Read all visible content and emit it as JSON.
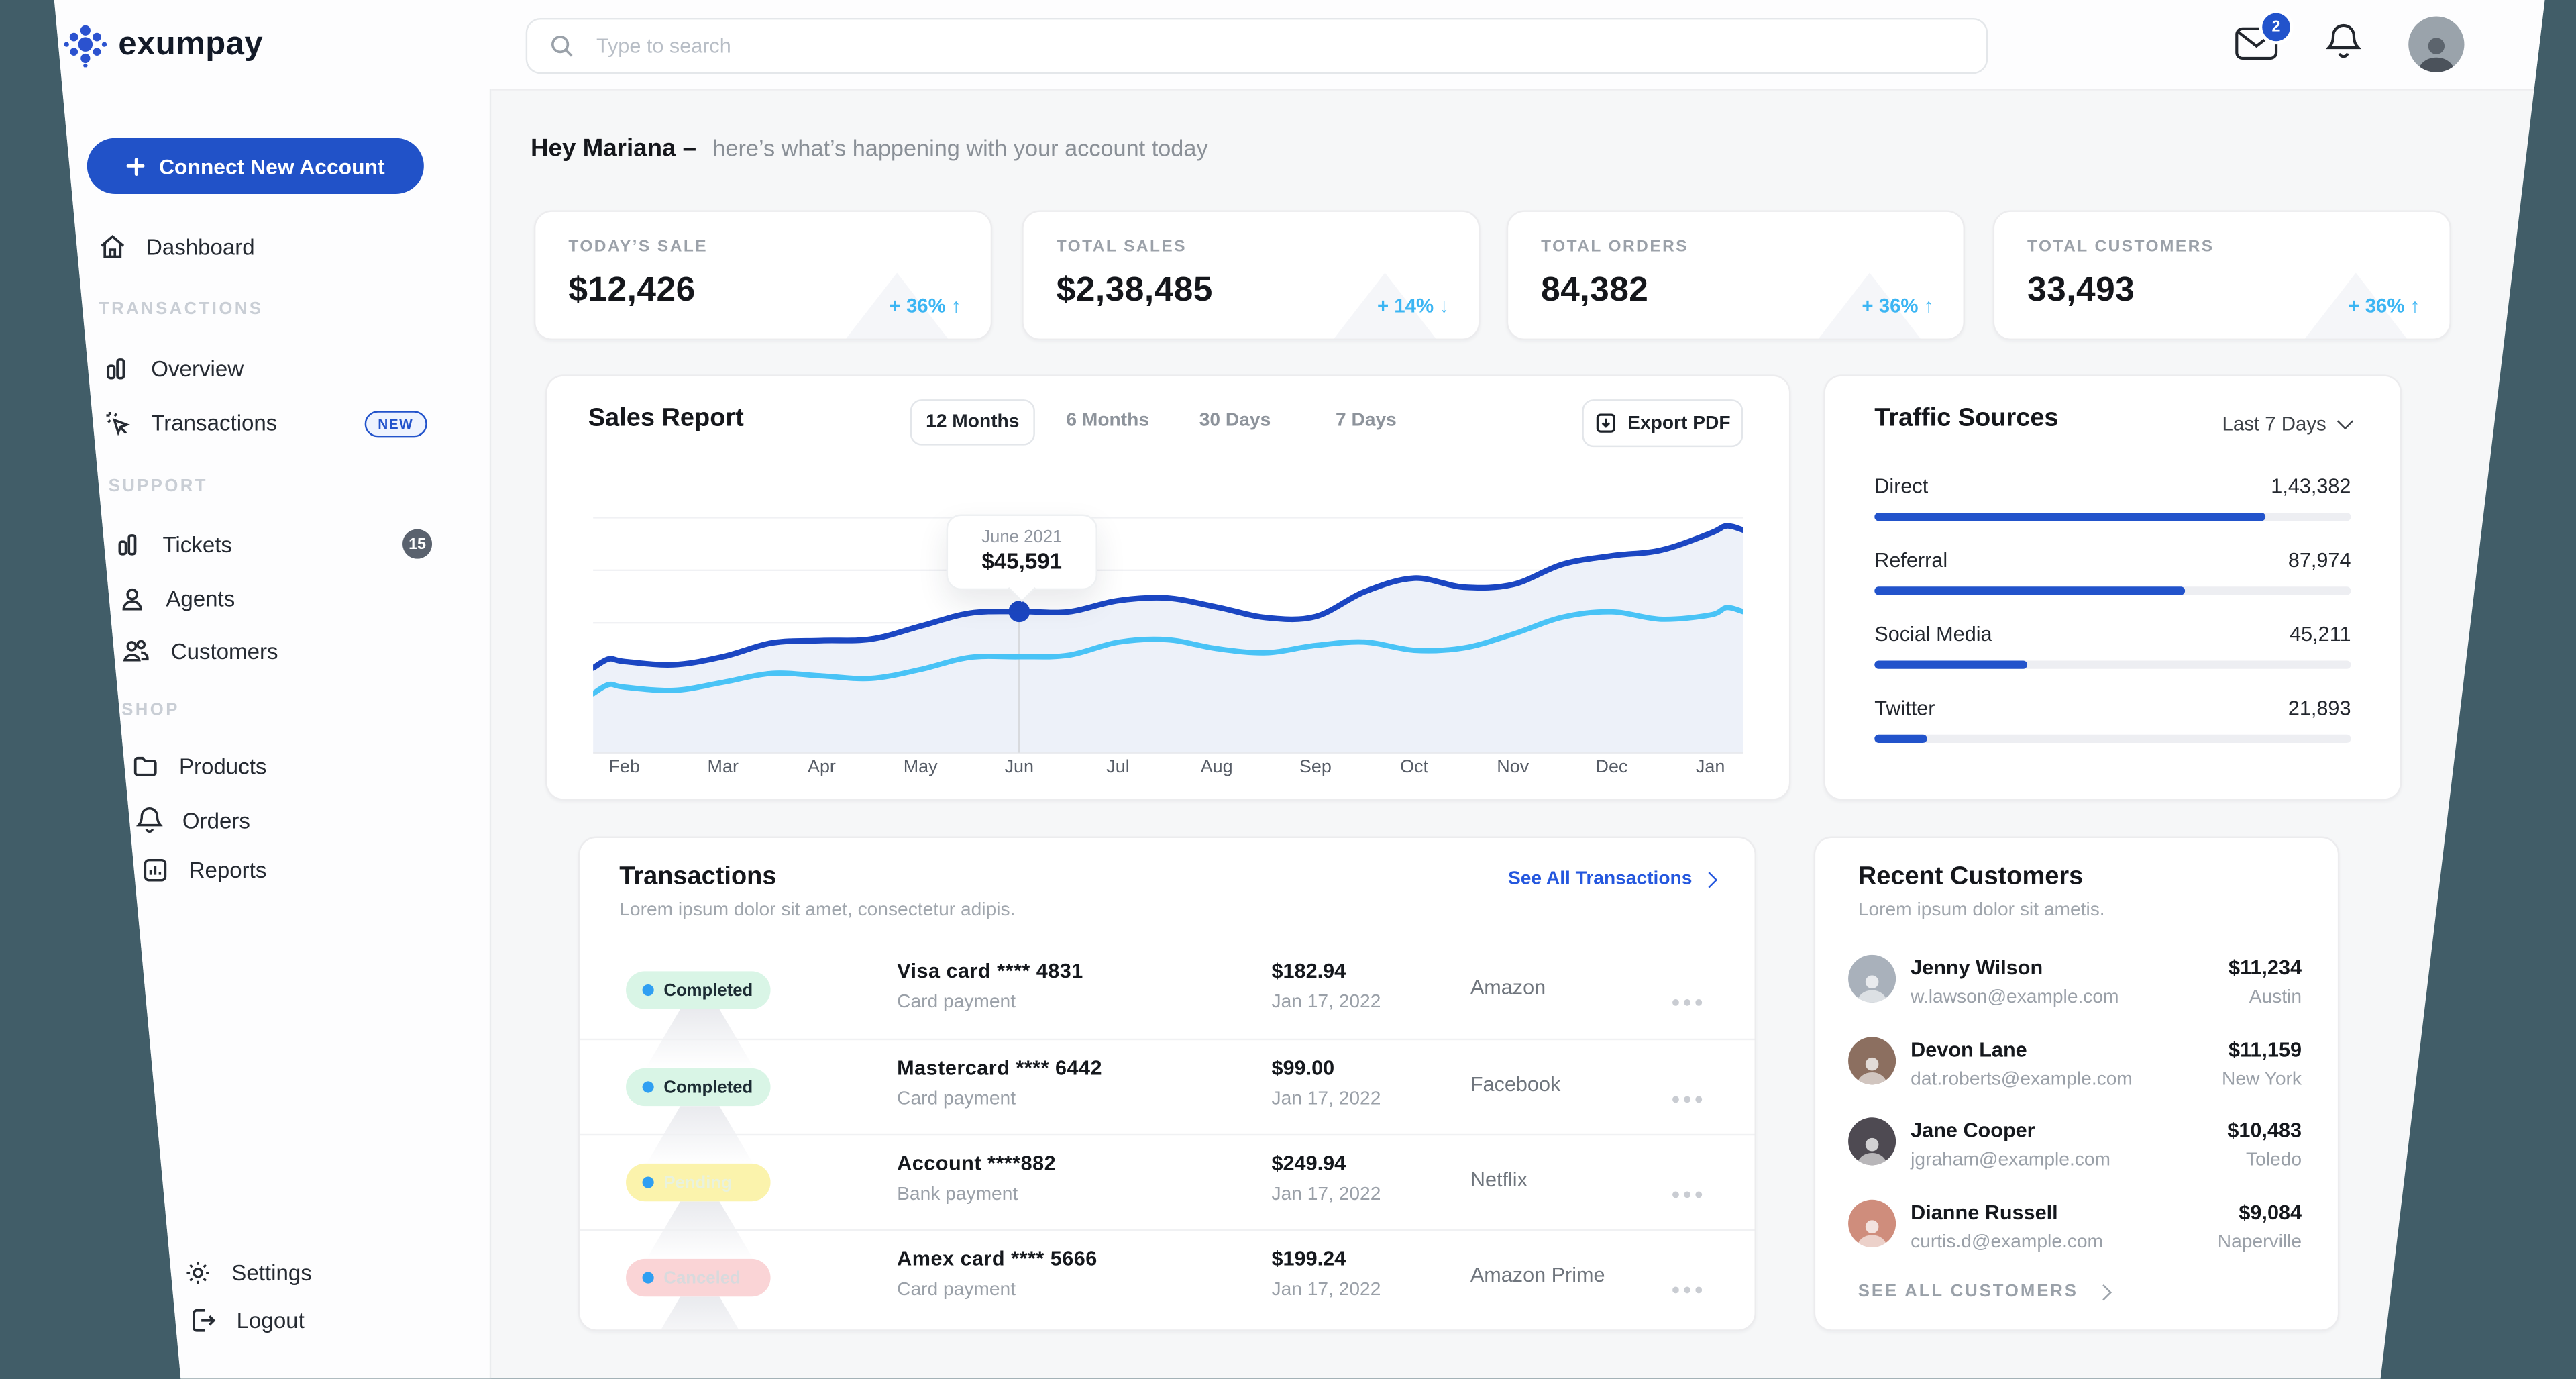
{
  "topbar": {
    "logo": "exumpay",
    "search_placeholder": "Type to search",
    "mail_badge": "2"
  },
  "sidebar": {
    "connect_label": "Connect New Account",
    "dashboard": "Dashboard",
    "transactions_section": "TRANSACTIONS",
    "overview": "Overview",
    "transactions": "Transactions",
    "new_badge": "NEW",
    "support_section": "SUPPORT",
    "tickets": "Tickets",
    "tickets_badge": "15",
    "agents": "Agents",
    "customers": "Customers",
    "shop_section": "SHOP",
    "products": "Products",
    "orders": "Orders",
    "reports": "Reports",
    "settings": "Settings",
    "logout": "Logout"
  },
  "greeting": {
    "bold": "Hey Mariana –",
    "rest": "here’s what’s happening with your account today"
  },
  "stats": [
    {
      "title": "TODAY’S SALE",
      "value": "$12,426",
      "delta": "+ 36% ↑"
    },
    {
      "title": "TOTAL SALES",
      "value": "$2,38,485",
      "delta": "+ 14% ↓"
    },
    {
      "title": "TOTAL ORDERS",
      "value": "84,382",
      "delta": "+ 36% ↑"
    },
    {
      "title": "TOTAL CUSTOMERS",
      "value": "33,493",
      "delta": "+ 36% ↑"
    }
  ],
  "sales": {
    "title": "Sales Report",
    "tabs": [
      "12 Months",
      "6 Months",
      "30 Days",
      "7 Days"
    ],
    "active_tab": "12 Months",
    "export_label": "Export PDF",
    "tooltip": {
      "month": "June 2021",
      "value": "$45,591"
    }
  },
  "chart_data": [
    {
      "type": "line",
      "title": "Sales Report",
      "x": [
        "Feb",
        "Mar",
        "Apr",
        "May",
        "Jun",
        "Jul",
        "Aug",
        "Sep",
        "Oct",
        "Nov",
        "Dec",
        "Jan"
      ],
      "series": [
        {
          "name": "sales",
          "color": "#1b46c2",
          "values": [
            30000,
            31500,
            36500,
            41000,
            45591,
            49000,
            47000,
            44000,
            56000,
            54000,
            63000,
            70000
          ]
        },
        {
          "name": "visits",
          "color": "#49c3f6",
          "values": [
            22000,
            23500,
            25500,
            27500,
            31500,
            36000,
            34000,
            35000,
            33500,
            38500,
            45500,
            44500
          ]
        }
      ],
      "highlight": {
        "x": "Jun",
        "label": "June 2021",
        "value": 45591
      },
      "grid": "horizontal",
      "legend": "none",
      "ylim": [
        0,
        82000
      ]
    },
    {
      "type": "bar",
      "title": "Traffic Sources",
      "categories": [
        "Direct",
        "Referral",
        "Social Media",
        "Twitter"
      ],
      "values": [
        143382,
        87974,
        45211,
        21893
      ],
      "bar_pct": [
        82,
        65,
        32,
        11
      ],
      "color": "#2253cb"
    }
  ],
  "traffic": {
    "title": "Traffic Sources",
    "period": "Last 7 Days",
    "rows": [
      {
        "label": "Direct",
        "value": "1,43,382",
        "bar_pct": 82
      },
      {
        "label": "Referral",
        "value": "87,974",
        "bar_pct": 65
      },
      {
        "label": "Social Media",
        "value": "45,211",
        "bar_pct": 32
      },
      {
        "label": "Twitter",
        "value": "21,893",
        "bar_pct": 11
      }
    ]
  },
  "transactions": {
    "title": "Transactions",
    "subtitle": "Lorem ipsum dolor sit amet, consectetur adipis.",
    "link": "See All Transactions",
    "rows": [
      {
        "status": "Completed",
        "status_bg": "#d9f5e6",
        "status_text": "#1c2b33",
        "method": "Visa card **** 4831",
        "type": "Card payment",
        "amount": "$182.94",
        "date": "Jan 17, 2022",
        "merchant": "Amazon"
      },
      {
        "status": "Completed",
        "status_bg": "#d9f5e6",
        "status_text": "#1c2b33",
        "method": "Mastercard **** 6442",
        "type": "Card payment",
        "amount": "$99.00",
        "date": "Jan 17, 2022",
        "merchant": "Facebook"
      },
      {
        "status": "Pending",
        "status_bg": "#fbf3ac",
        "status_text": "#e9f2dd",
        "method": "Account ****882",
        "type": "Bank payment",
        "amount": "$249.94",
        "date": "Jan 17, 2022",
        "merchant": "Netflix"
      },
      {
        "status": "Canceled",
        "status_bg": "#fad4d6",
        "status_text": "#d8dadd",
        "method": "Amex card **** 5666",
        "type": "Card payment",
        "amount": "$199.24",
        "date": "Jan 17, 2022",
        "merchant": "Amazon Prime"
      }
    ]
  },
  "customers": {
    "title": "Recent Customers",
    "subtitle": "Lorem ipsum dolor sit ametis.",
    "see_all": "SEE ALL CUSTOMERS",
    "rows": [
      {
        "name": "Jenny Wilson",
        "email": "w.lawson@example.com",
        "amount": "$11,234",
        "city": "Austin",
        "avatar_color": "#a9b1bb"
      },
      {
        "name": "Devon Lane",
        "email": "dat.roberts@example.com",
        "amount": "$11,159",
        "city": "New York",
        "avatar_color": "#8c6f60"
      },
      {
        "name": "Jane Cooper",
        "email": "jgraham@example.com",
        "amount": "$10,483",
        "city": "Toledo",
        "avatar_color": "#4e4a52"
      },
      {
        "name": "Dianne Russell",
        "email": "curtis.d@example.com",
        "amount": "$9,084",
        "city": "Naperville",
        "avatar_color": "#cf8d7c"
      }
    ]
  },
  "colors": {
    "primary_blue": "#2253cb",
    "line_dark": "#1b46c2",
    "line_light": "#49c3f6",
    "delta_cyan": "#3bb5f3",
    "frame_bg": "#415d68"
  }
}
